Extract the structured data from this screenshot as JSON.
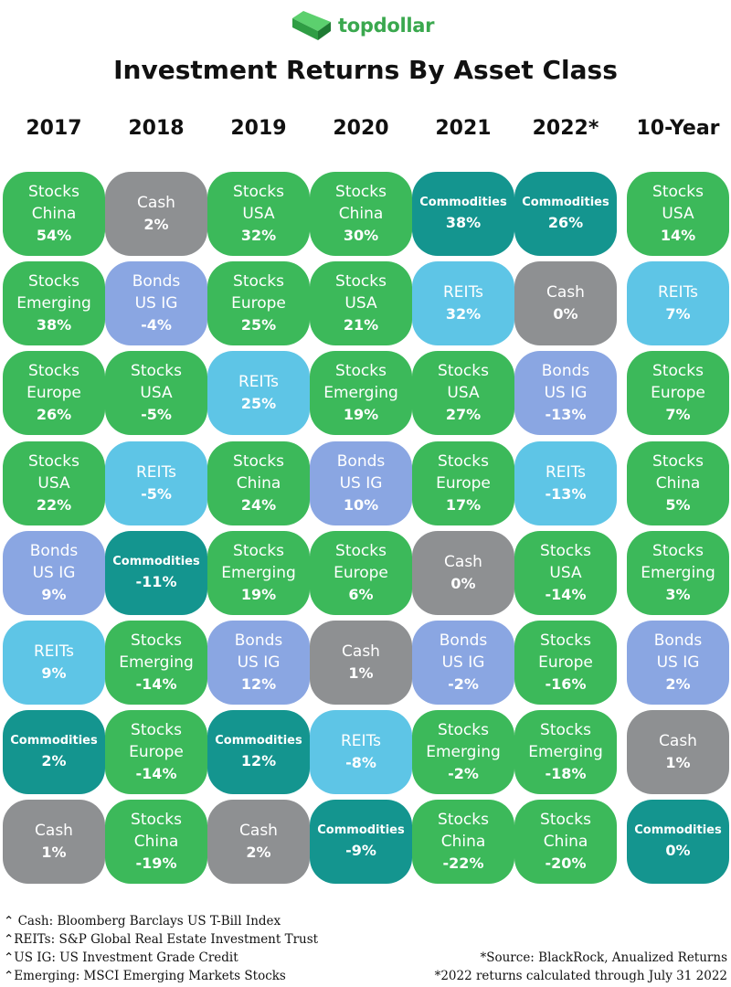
{
  "brand": {
    "name": "topdollar",
    "color": "#3aa84e"
  },
  "title": "Investment Returns By Asset Class",
  "colors": {
    "Stocks": "#3cb95a",
    "Cash": "#8e9092",
    "Bonds": "#8aa6e2",
    "REITs": "#5ec5e6",
    "Commodities": "#14958f"
  },
  "chart_data": {
    "type": "table",
    "title": "Investment Returns By Asset Class",
    "columns": [
      "2017",
      "2018",
      "2019",
      "2020",
      "2021",
      "2022*",
      "10-Year"
    ],
    "ranked_returns": [
      [
        {
          "label": "Stocks China",
          "line1": "Stocks",
          "line2": "China",
          "category": "Stocks",
          "value": 54,
          "display": "54%"
        },
        {
          "label": "Stocks Emerging",
          "line1": "Stocks",
          "line2": "Emerging",
          "category": "Stocks",
          "value": 38,
          "display": "38%"
        },
        {
          "label": "Stocks Europe",
          "line1": "Stocks",
          "line2": "Europe",
          "category": "Stocks",
          "value": 26,
          "display": "26%"
        },
        {
          "label": "Stocks USA",
          "line1": "Stocks",
          "line2": "USA",
          "category": "Stocks",
          "value": 22,
          "display": "22%"
        },
        {
          "label": "Bonds US IG",
          "line1": "Bonds",
          "line2": "US IG",
          "category": "Bonds",
          "value": 9,
          "display": "9%"
        },
        {
          "label": "REITs",
          "line1": "REITs",
          "line2": "",
          "category": "REITs",
          "value": 9,
          "display": "9%"
        },
        {
          "label": "Commodities",
          "line1": "Commodities",
          "line2": "",
          "category": "Commodities",
          "value": 2,
          "display": "2%"
        },
        {
          "label": "Cash",
          "line1": "Cash",
          "line2": "",
          "category": "Cash",
          "value": 1,
          "display": "1%"
        }
      ],
      [
        {
          "label": "Cash",
          "line1": "Cash",
          "line2": "",
          "category": "Cash",
          "value": 2,
          "display": "2%"
        },
        {
          "label": "Bonds US IG",
          "line1": "Bonds",
          "line2": "US IG",
          "category": "Bonds",
          "value": -4,
          "display": "-4%"
        },
        {
          "label": "Stocks USA",
          "line1": "Stocks",
          "line2": "USA",
          "category": "Stocks",
          "value": -5,
          "display": "-5%"
        },
        {
          "label": "REITs",
          "line1": "REITs",
          "line2": "",
          "category": "REITs",
          "value": -5,
          "display": "-5%"
        },
        {
          "label": "Commodities",
          "line1": "Commodities",
          "line2": "",
          "category": "Commodities",
          "value": -11,
          "display": "-11%"
        },
        {
          "label": "Stocks Emerging",
          "line1": "Stocks",
          "line2": "Emerging",
          "category": "Stocks",
          "value": -14,
          "display": "-14%"
        },
        {
          "label": "Stocks Europe",
          "line1": "Stocks",
          "line2": "Europe",
          "category": "Stocks",
          "value": -14,
          "display": "-14%"
        },
        {
          "label": "Stocks China",
          "line1": "Stocks",
          "line2": "China",
          "category": "Stocks",
          "value": -19,
          "display": "-19%"
        }
      ],
      [
        {
          "label": "Stocks USA",
          "line1": "Stocks",
          "line2": "USA",
          "category": "Stocks",
          "value": 32,
          "display": "32%"
        },
        {
          "label": "Stocks Europe",
          "line1": "Stocks",
          "line2": "Europe",
          "category": "Stocks",
          "value": 25,
          "display": "25%"
        },
        {
          "label": "REITs",
          "line1": "REITs",
          "line2": "",
          "category": "REITs",
          "value": 25,
          "display": "25%"
        },
        {
          "label": "Stocks China",
          "line1": "Stocks",
          "line2": "China",
          "category": "Stocks",
          "value": 24,
          "display": "24%"
        },
        {
          "label": "Stocks Emerging",
          "line1": "Stocks",
          "line2": "Emerging",
          "category": "Stocks",
          "value": 19,
          "display": "19%"
        },
        {
          "label": "Bonds US IG",
          "line1": "Bonds",
          "line2": "US IG",
          "category": "Bonds",
          "value": 12,
          "display": "12%"
        },
        {
          "label": "Commodities",
          "line1": "Commodities",
          "line2": "",
          "category": "Commodities",
          "value": 12,
          "display": "12%"
        },
        {
          "label": "Cash",
          "line1": "Cash",
          "line2": "",
          "category": "Cash",
          "value": 2,
          "display": "2%"
        }
      ],
      [
        {
          "label": "Stocks China",
          "line1": "Stocks",
          "line2": "China",
          "category": "Stocks",
          "value": 30,
          "display": "30%"
        },
        {
          "label": "Stocks USA",
          "line1": "Stocks",
          "line2": "USA",
          "category": "Stocks",
          "value": 21,
          "display": "21%"
        },
        {
          "label": "Stocks Emerging",
          "line1": "Stocks",
          "line2": "Emerging",
          "category": "Stocks",
          "value": 19,
          "display": "19%"
        },
        {
          "label": "Bonds US IG",
          "line1": "Bonds",
          "line2": "US IG",
          "category": "Bonds",
          "value": 10,
          "display": "10%"
        },
        {
          "label": "Stocks Europe",
          "line1": "Stocks",
          "line2": "Europe",
          "category": "Stocks",
          "value": 6,
          "display": "6%"
        },
        {
          "label": "Cash",
          "line1": "Cash",
          "line2": "",
          "category": "Cash",
          "value": 1,
          "display": "1%"
        },
        {
          "label": "REITs",
          "line1": "REITs",
          "line2": "",
          "category": "REITs",
          "value": -8,
          "display": "-8%"
        },
        {
          "label": "Commodities",
          "line1": "Commodities",
          "line2": "",
          "category": "Commodities",
          "value": -9,
          "display": "-9%"
        }
      ],
      [
        {
          "label": "Commodities",
          "line1": "Commodities",
          "line2": "",
          "category": "Commodities",
          "value": 38,
          "display": "38%"
        },
        {
          "label": "REITs",
          "line1": "REITs",
          "line2": "",
          "category": "REITs",
          "value": 32,
          "display": "32%"
        },
        {
          "label": "Stocks USA",
          "line1": "Stocks",
          "line2": "USA",
          "category": "Stocks",
          "value": 27,
          "display": "27%"
        },
        {
          "label": "Stocks Europe",
          "line1": "Stocks",
          "line2": "Europe",
          "category": "Stocks",
          "value": 17,
          "display": "17%"
        },
        {
          "label": "Cash",
          "line1": "Cash",
          "line2": "",
          "category": "Cash",
          "value": 0,
          "display": "0%"
        },
        {
          "label": "Bonds US IG",
          "line1": "Bonds",
          "line2": "US IG",
          "category": "Bonds",
          "value": -2,
          "display": "-2%"
        },
        {
          "label": "Stocks Emerging",
          "line1": "Stocks",
          "line2": "Emerging",
          "category": "Stocks",
          "value": -2,
          "display": "-2%"
        },
        {
          "label": "Stocks China",
          "line1": "Stocks",
          "line2": "China",
          "category": "Stocks",
          "value": -22,
          "display": "-22%"
        }
      ],
      [
        {
          "label": "Commodities",
          "line1": "Commodities",
          "line2": "",
          "category": "Commodities",
          "value": 26,
          "display": "26%"
        },
        {
          "label": "Cash",
          "line1": "Cash",
          "line2": "",
          "category": "Cash",
          "value": 0,
          "display": "0%"
        },
        {
          "label": "Bonds US IG",
          "line1": "Bonds",
          "line2": "US IG",
          "category": "Bonds",
          "value": -13,
          "display": "-13%"
        },
        {
          "label": "REITs",
          "line1": "REITs",
          "line2": "",
          "category": "REITs",
          "value": -13,
          "display": "-13%"
        },
        {
          "label": "Stocks USA",
          "line1": "Stocks",
          "line2": "USA",
          "category": "Stocks",
          "value": -14,
          "display": "-14%"
        },
        {
          "label": "Stocks Europe",
          "line1": "Stocks",
          "line2": "Europe",
          "category": "Stocks",
          "value": -16,
          "display": "-16%"
        },
        {
          "label": "Stocks Emerging",
          "line1": "Stocks",
          "line2": "Emerging",
          "category": "Stocks",
          "value": -18,
          "display": "-18%"
        },
        {
          "label": "Stocks China",
          "line1": "Stocks",
          "line2": "China",
          "category": "Stocks",
          "value": -20,
          "display": "-20%"
        }
      ],
      [
        {
          "label": "Stocks USA",
          "line1": "Stocks",
          "line2": "USA",
          "category": "Stocks",
          "value": 14,
          "display": "14%"
        },
        {
          "label": "REITs",
          "line1": "REITs",
          "line2": "",
          "category": "REITs",
          "value": 7,
          "display": "7%"
        },
        {
          "label": "Stocks Europe",
          "line1": "Stocks",
          "line2": "Europe",
          "category": "Stocks",
          "value": 7,
          "display": "7%"
        },
        {
          "label": "Stocks China",
          "line1": "Stocks",
          "line2": "China",
          "category": "Stocks",
          "value": 5,
          "display": "5%"
        },
        {
          "label": "Stocks Emerging",
          "line1": "Stocks",
          "line2": "Emerging",
          "category": "Stocks",
          "value": 3,
          "display": "3%"
        },
        {
          "label": "Bonds US IG",
          "line1": "Bonds",
          "line2": "US IG",
          "category": "Bonds",
          "value": 2,
          "display": "2%"
        },
        {
          "label": "Cash",
          "line1": "Cash",
          "line2": "",
          "category": "Cash",
          "value": 1,
          "display": "1%"
        },
        {
          "label": "Commodities",
          "line1": "Commodities",
          "line2": "",
          "category": "Commodities",
          "value": 0,
          "display": "0%"
        }
      ]
    ]
  },
  "footnotes_left": [
    "⌃ Cash: Bloomberg Barclays US T-Bill Index",
    "⌃REITs: S&P Global Real Estate Investment Trust",
    "⌃US IG: US Investment Grade Credit",
    "⌃Emerging: MSCI Emerging Markets Stocks"
  ],
  "footnotes_right": [
    "*Source: BlackRock, Anualized Returns",
    "*2022 returns calculated through July 31 2022"
  ]
}
